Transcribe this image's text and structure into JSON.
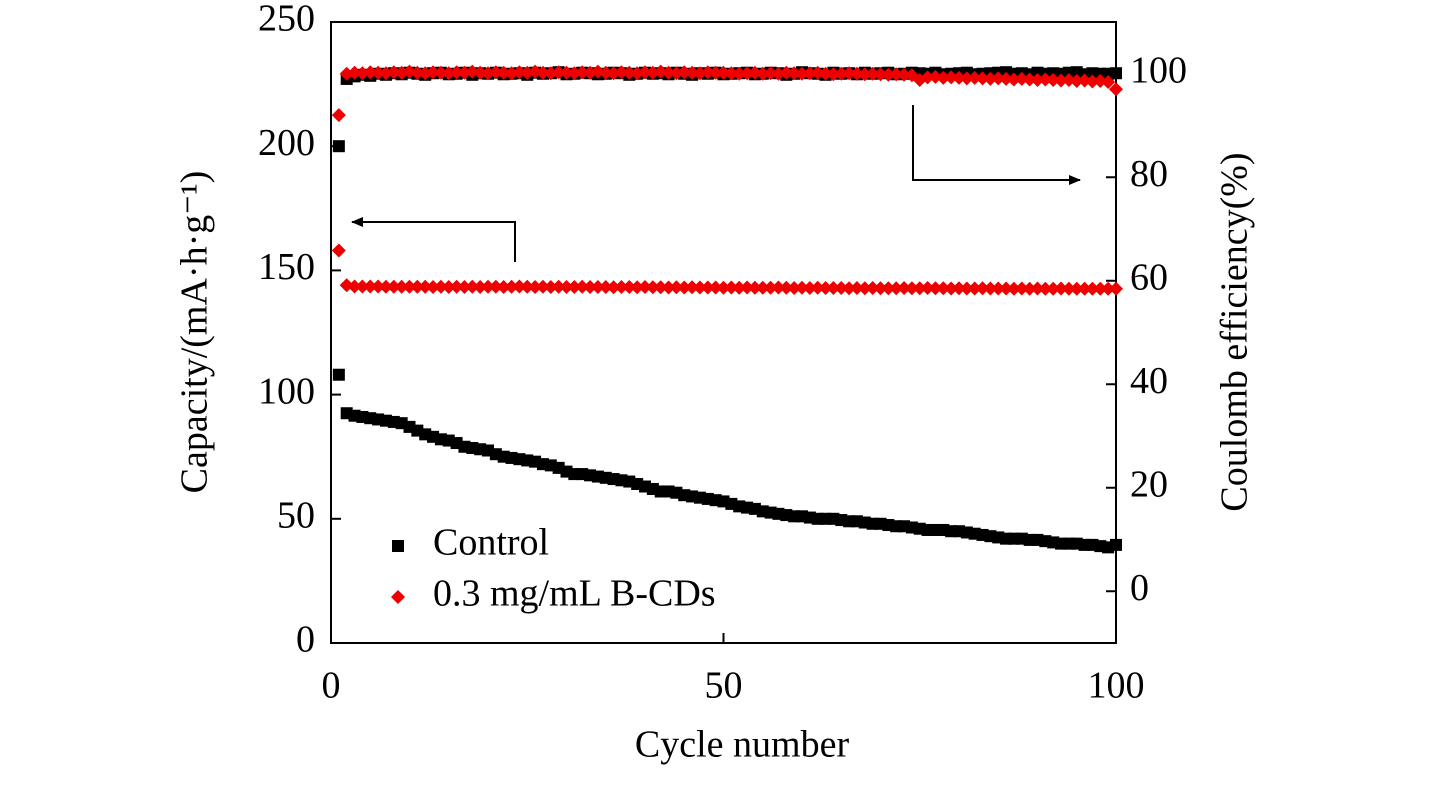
{
  "chart_data": {
    "type": "scatter",
    "xlabel": "Cycle number",
    "ylabel": "Capacity/(mA·h·g⁻¹)",
    "y2label": "Coulomb efficiency(%)",
    "xlim": [
      0,
      100
    ],
    "xticks": [
      0,
      50,
      100
    ],
    "ylim": [
      0,
      250
    ],
    "yticks": [
      0,
      50,
      100,
      150,
      200,
      250
    ],
    "y2lim": [
      -10,
      110
    ],
    "y2ticks": [
      0,
      20,
      40,
      60,
      80,
      100
    ],
    "legend": "lower left",
    "x": [
      1,
      2,
      3,
      4,
      5,
      6,
      7,
      8,
      9,
      10,
      11,
      12,
      13,
      14,
      15,
      16,
      17,
      18,
      19,
      20,
      21,
      22,
      23,
      24,
      25,
      26,
      27,
      28,
      29,
      30,
      31,
      32,
      33,
      34,
      35,
      36,
      37,
      38,
      39,
      40,
      41,
      42,
      43,
      44,
      45,
      46,
      47,
      48,
      49,
      50,
      51,
      52,
      53,
      54,
      55,
      56,
      57,
      58,
      59,
      60,
      61,
      62,
      63,
      64,
      65,
      66,
      67,
      68,
      69,
      70,
      71,
      72,
      73,
      74,
      75,
      76,
      77,
      78,
      79,
      80,
      81,
      82,
      83,
      84,
      85,
      86,
      87,
      88,
      89,
      90,
      91,
      92,
      93,
      94,
      95,
      96,
      97,
      98,
      99,
      100
    ],
    "series": [
      {
        "name": "Control",
        "color": "#000000",
        "marker": "square",
        "values": [
          108,
          92.5,
          91.5,
          91,
          90.5,
          90,
          89.5,
          89,
          88.5,
          87,
          85.5,
          84,
          83,
          82,
          81.5,
          80.5,
          79,
          78.5,
          78,
          77.5,
          76,
          75,
          74.5,
          74,
          73.5,
          73,
          72,
          71.5,
          70.5,
          69,
          68,
          68,
          67.5,
          67,
          66.5,
          66,
          65.5,
          65,
          64,
          63,
          62,
          61,
          61,
          60.5,
          59.5,
          59,
          58.5,
          58,
          57.5,
          57,
          56,
          55,
          54.5,
          54,
          53,
          52.5,
          52,
          51.5,
          51,
          51,
          50.5,
          50,
          50,
          50,
          49.5,
          49,
          49,
          48.5,
          48,
          48,
          47.5,
          47,
          47,
          46.5,
          46,
          45.5,
          45.5,
          45.5,
          45,
          45,
          44.5,
          44,
          43.5,
          43,
          42.5,
          42,
          42,
          42,
          41.5,
          41.5,
          41,
          40.5,
          40,
          40,
          40,
          39.5,
          39.5,
          39,
          38.5,
          39.5
        ],
        "y2_values": [
          86,
          99,
          99.5,
          99.8,
          99.6,
          100,
          99.8,
          100.1,
          99.9,
          100.2,
          100,
          99.8,
          100.1,
          100.2,
          99.9,
          100,
          100.2,
          99.8,
          100.1,
          100,
          100.2,
          99.9,
          100,
          100.1,
          99.8,
          100.2,
          100,
          100.1,
          100.3,
          99.9,
          100,
          100.2,
          100.1,
          99.9,
          100,
          100.2,
          100.1,
          99.8,
          100,
          100.2,
          100,
          100.1,
          99.9,
          100.2,
          100,
          99.8,
          100.1,
          100,
          100.2,
          99.9,
          100,
          100.1,
          100.2,
          99.9,
          100,
          100.2,
          100.1,
          99.8,
          100,
          100.3,
          100.1,
          100,
          99.8,
          100.2,
          100,
          100.1,
          99.9,
          100.2,
          100,
          100.1,
          100.2,
          99.9,
          100,
          100.2,
          100.1,
          100,
          100.2,
          99.9,
          100,
          100.1,
          100.2,
          99.9,
          100,
          100.1,
          100.2,
          100.3,
          100,
          100.1,
          99.9,
          100.2,
          100,
          100.1,
          100,
          100.2,
          100.3,
          99.9,
          100.1,
          100,
          100,
          100.1
        ]
      },
      {
        "name": "0.3 mg/mL B-CDs",
        "color": "#ee0000",
        "marker": "diamond",
        "values": [
          158,
          144,
          143.5,
          143.5,
          143.5,
          143.5,
          143.4,
          143.4,
          143.4,
          143.4,
          143.4,
          143.4,
          143.3,
          143.4,
          143.3,
          143.4,
          143.3,
          143.4,
          143.3,
          143.4,
          143.4,
          143.3,
          143.4,
          143.5,
          143.4,
          143.3,
          143.4,
          143.3,
          143.4,
          143.3,
          143.3,
          143.4,
          143.3,
          143.3,
          143.3,
          143.2,
          143.3,
          143.3,
          143.2,
          143.3,
          143.2,
          143.2,
          143.1,
          143.2,
          143.1,
          143.2,
          143.1,
          143.1,
          143.1,
          143,
          143.1,
          143,
          143.1,
          143,
          143,
          143,
          143.1,
          143,
          142.9,
          143,
          142.9,
          143,
          142.9,
          142.9,
          142.9,
          142.8,
          142.9,
          142.8,
          142.9,
          142.8,
          142.8,
          142.8,
          142.9,
          142.8,
          142.8,
          142.9,
          142.8,
          142.8,
          142.7,
          142.8,
          142.7,
          142.7,
          142.8,
          142.7,
          142.7,
          142.7,
          142.6,
          142.7,
          142.6,
          142.7,
          142.6,
          142.6,
          142.7,
          142.6,
          142.6,
          142.6,
          142.6,
          142.6,
          142.6,
          142.6
        ],
        "y2_values": [
          92,
          100,
          100.2,
          100.1,
          100.3,
          100.2,
          100.1,
          100.3,
          100.2,
          100.4,
          100.2,
          100.1,
          100.3,
          100.2,
          100.1,
          100.3,
          100.2,
          100.4,
          100.2,
          100.1,
          100.3,
          100.2,
          100.1,
          100.3,
          100.2,
          100.4,
          100.2,
          100.1,
          100.3,
          100.2,
          100.1,
          100.3,
          100.2,
          100.4,
          100.2,
          100.1,
          100.3,
          100.2,
          100.1,
          100.3,
          100.2,
          100.4,
          100.2,
          100.1,
          100.3,
          100.2,
          100.1,
          100.3,
          100.2,
          100.2,
          100.1,
          100,
          100.1,
          100.2,
          100,
          100.1,
          100,
          100.2,
          100.1,
          100,
          100.1,
          100.2,
          100,
          99.9,
          100,
          100.1,
          100,
          99.9,
          100,
          99.9,
          99.8,
          99.9,
          99.8,
          99.7,
          98.8,
          99.3,
          99.4,
          99.2,
          99.3,
          99.2,
          99.1,
          99.2,
          99.1,
          99,
          99.1,
          99,
          98.9,
          99,
          98.9,
          98.8,
          98.9,
          98.8,
          98.7,
          98.8,
          98.6,
          98.7,
          98.5,
          98.6,
          98.4,
          97
        ]
      }
    ]
  }
}
